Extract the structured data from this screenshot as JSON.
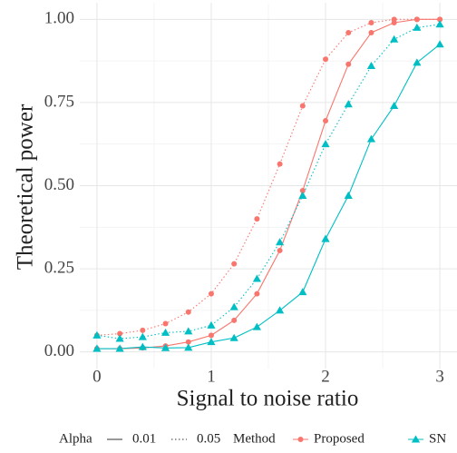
{
  "chart_data": {
    "type": "line",
    "x_label": "Signal to noise ratio",
    "y_label": "Theoretical power",
    "x": [
      0,
      0.2,
      0.4,
      0.6,
      0.8,
      1.0,
      1.2,
      1.4,
      1.6,
      1.8,
      2.0,
      2.2,
      2.4,
      2.6,
      2.8,
      3.0
    ],
    "series": [
      {
        "method": "Proposed",
        "alpha": "0.01",
        "color": "#f8766d",
        "dash": "solid",
        "marker": "circle",
        "values": [
          0.01,
          0.01,
          0.012,
          0.018,
          0.03,
          0.05,
          0.095,
          0.175,
          0.305,
          0.485,
          0.695,
          0.865,
          0.96,
          0.99,
          1.0,
          1.0
        ]
      },
      {
        "method": "Proposed",
        "alpha": "0.05",
        "color": "#f8766d",
        "dash": "dotted",
        "marker": "circle",
        "values": [
          0.05,
          0.055,
          0.065,
          0.085,
          0.12,
          0.175,
          0.265,
          0.4,
          0.565,
          0.74,
          0.88,
          0.96,
          0.99,
          1.0,
          1.0,
          1.0
        ]
      },
      {
        "method": "SN",
        "alpha": "0.01",
        "color": "#00bfc4",
        "dash": "solid",
        "marker": "triangle",
        "values": [
          0.01,
          0.01,
          0.015,
          0.012,
          0.013,
          0.03,
          0.042,
          0.075,
          0.125,
          0.18,
          0.34,
          0.47,
          0.64,
          0.74,
          0.87,
          0.925
        ]
      },
      {
        "method": "SN",
        "alpha": "0.05",
        "color": "#00bfc4",
        "dash": "dotted",
        "marker": "triangle",
        "values": [
          0.05,
          0.04,
          0.045,
          0.058,
          0.062,
          0.08,
          0.135,
          0.22,
          0.33,
          0.47,
          0.625,
          0.745,
          0.86,
          0.94,
          0.975,
          0.985
        ]
      }
    ],
    "xlim": [
      -0.15,
      3.15
    ],
    "ylim": [
      -0.05,
      1.05
    ],
    "xticks": [
      0,
      1,
      2,
      3
    ],
    "yticks": [
      {
        "value": 0,
        "label": "0.00"
      },
      {
        "value": 0.25,
        "label": "0.25"
      },
      {
        "value": 0.5,
        "label": "0.50"
      },
      {
        "value": 0.75,
        "label": "0.75"
      },
      {
        "value": 1,
        "label": "1.00"
      }
    ],
    "xminor": [
      0.5,
      1.5,
      2.5
    ],
    "yminor": [
      0.125,
      0.375,
      0.625,
      0.875
    ],
    "grid": true,
    "legend": {
      "position": "bottom",
      "alpha": {
        "title": "Alpha",
        "entries": [
          {
            "label": "0.01",
            "dash": "solid"
          },
          {
            "label": "0.05",
            "dash": "dotted"
          }
        ]
      },
      "method": {
        "title": "Method",
        "entries": [
          {
            "label": "Proposed",
            "color": "#f8766d",
            "marker": "circle"
          },
          {
            "label": "SN",
            "color": "#00bfc4",
            "marker": "triangle"
          }
        ]
      }
    }
  }
}
